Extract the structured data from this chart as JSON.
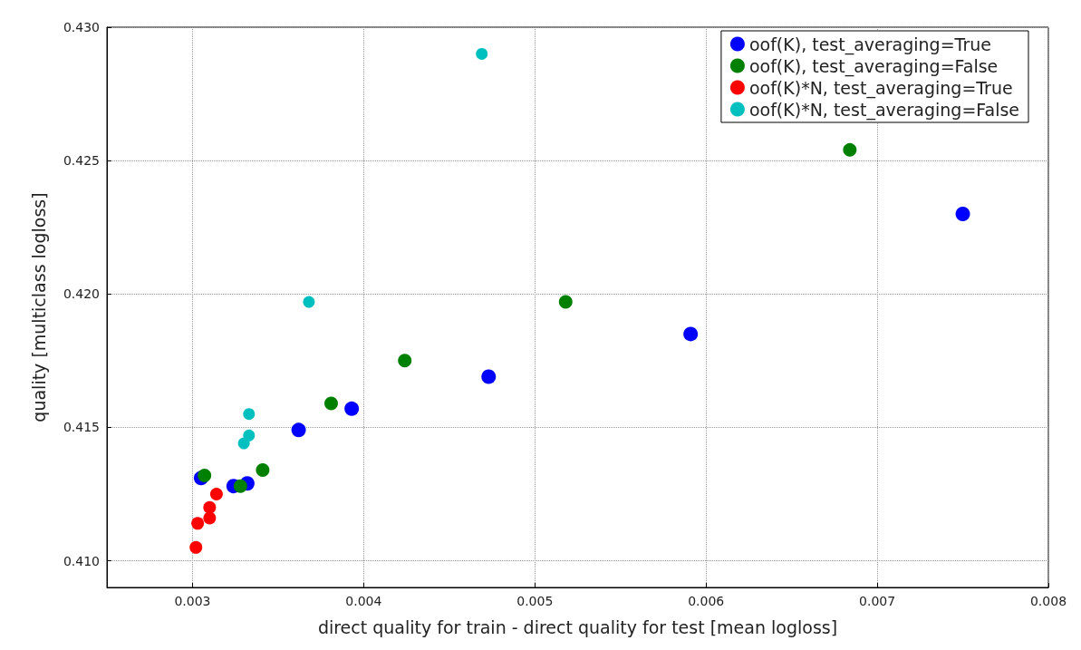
{
  "chart_data": {
    "type": "scatter",
    "xlabel": "direct quality for train - direct quality for test [mean logloss]",
    "ylabel": "quality [multiclass logloss]",
    "xlim": [
      0.0025,
      0.008
    ],
    "xticks": [
      0.003,
      0.004,
      0.005,
      0.006,
      0.007,
      0.008
    ],
    "ylim": [
      0.409,
      0.43
    ],
    "yticks": [
      {
        "value": 0.41,
        "label": "0.410"
      },
      0.415,
      {
        "value": 0.42,
        "label": "0.420"
      },
      0.425,
      {
        "value": 0.43,
        "label": "0.430"
      }
    ],
    "grid": true,
    "legend": "top right",
    "marker": "circle",
    "series": [
      {
        "name": "oof(K), test_averaging=True",
        "color": "#0000ff",
        "x": [
          0.00305,
          0.00324,
          0.00332,
          0.00362,
          0.00393,
          0.00473,
          0.00591,
          0.0075
        ],
        "values": [
          0.4131,
          0.4128,
          0.4129,
          0.4149,
          0.4157,
          0.4169,
          0.4185,
          0.423
        ]
      },
      {
        "name": "oof(K), test_averaging=False",
        "color": "#008000",
        "x": [
          0.00307,
          0.00328,
          0.00341,
          0.00381,
          0.00424,
          0.00518,
          0.00684
        ],
        "values": [
          0.4132,
          0.4128,
          0.4134,
          0.4159,
          0.4175,
          0.4197,
          0.4254
        ]
      },
      {
        "name": "oof(K)*N, test_averaging=True",
        "color": "#ff0000",
        "x": [
          0.00314,
          0.0031,
          0.0031,
          0.00303,
          0.00302
        ],
        "values": [
          0.4125,
          0.412,
          0.4116,
          0.4114,
          0.4105
        ]
      },
      {
        "name": "oof(K)*N, test_averaging=False",
        "color": "#00bfbf",
        "x": [
          0.00333,
          0.00333,
          0.0033,
          0.00368,
          0.00469
        ],
        "values": [
          0.4155,
          0.4147,
          0.4144,
          0.4197,
          0.429
        ]
      }
    ]
  }
}
